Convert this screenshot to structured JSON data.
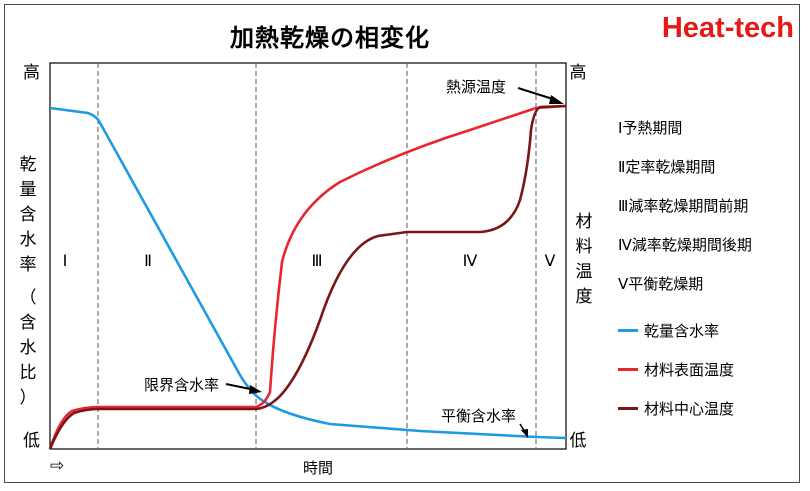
{
  "title": "加熱乾燥の相変化",
  "brand": "Heat-tech",
  "left_axis": {
    "high": "高",
    "low": "低",
    "label_lines": [
      "乾",
      "量",
      "含",
      "水",
      "率",
      "（",
      "含",
      "水",
      "比",
      "）"
    ]
  },
  "right_axis": {
    "high": "高",
    "low": "低",
    "label_lines": [
      "材",
      "料",
      "温",
      "度"
    ]
  },
  "x_axis": {
    "label": "時間",
    "arrow": "⇨"
  },
  "phase_labels": [
    "Ⅰ",
    "Ⅱ",
    "Ⅲ",
    "Ⅳ",
    "Ⅴ"
  ],
  "annotations": {
    "critical": "限界含水率",
    "equilibrium": "平衡含水率",
    "heat_source": "熱源温度"
  },
  "legend": {
    "phases": [
      "Ⅰ予熱期間",
      "Ⅱ定率乾燥期間",
      "Ⅲ減率乾燥期間前期",
      "Ⅳ減率乾燥期間後期",
      "Ⅴ平衡乾燥期"
    ],
    "series": [
      {
        "name": "乾量含水率",
        "color": "#1e9be0"
      },
      {
        "name": "材料表面温度",
        "color": "#e8262e"
      },
      {
        "name": "材料中心温度",
        "color": "#7a1616"
      }
    ]
  }
}
